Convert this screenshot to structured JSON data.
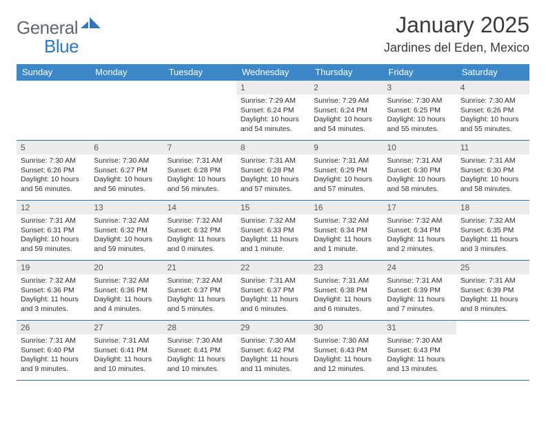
{
  "logo": {
    "text_general": "General",
    "text_blue": "Blue",
    "icon_color": "#2f78bd",
    "general_color": "#5c6770"
  },
  "header": {
    "month_title": "January 2025",
    "location": "Jardines del Eden, Mexico"
  },
  "colors": {
    "header_bar": "#3b87c8",
    "row_divider": "#2f6fa6",
    "daynum_bg": "#ececec",
    "text": "#333333"
  },
  "weekdays": [
    "Sunday",
    "Monday",
    "Tuesday",
    "Wednesday",
    "Thursday",
    "Friday",
    "Saturday"
  ],
  "weeks": [
    [
      {
        "n": "",
        "sunrise": "",
        "sunset": "",
        "daylight": ""
      },
      {
        "n": "",
        "sunrise": "",
        "sunset": "",
        "daylight": ""
      },
      {
        "n": "",
        "sunrise": "",
        "sunset": "",
        "daylight": ""
      },
      {
        "n": "1",
        "sunrise": "Sunrise: 7:29 AM",
        "sunset": "Sunset: 6:24 PM",
        "daylight": "Daylight: 10 hours and 54 minutes."
      },
      {
        "n": "2",
        "sunrise": "Sunrise: 7:29 AM",
        "sunset": "Sunset: 6:24 PM",
        "daylight": "Daylight: 10 hours and 54 minutes."
      },
      {
        "n": "3",
        "sunrise": "Sunrise: 7:30 AM",
        "sunset": "Sunset: 6:25 PM",
        "daylight": "Daylight: 10 hours and 55 minutes."
      },
      {
        "n": "4",
        "sunrise": "Sunrise: 7:30 AM",
        "sunset": "Sunset: 6:26 PM",
        "daylight": "Daylight: 10 hours and 55 minutes."
      }
    ],
    [
      {
        "n": "5",
        "sunrise": "Sunrise: 7:30 AM",
        "sunset": "Sunset: 6:26 PM",
        "daylight": "Daylight: 10 hours and 56 minutes."
      },
      {
        "n": "6",
        "sunrise": "Sunrise: 7:30 AM",
        "sunset": "Sunset: 6:27 PM",
        "daylight": "Daylight: 10 hours and 56 minutes."
      },
      {
        "n": "7",
        "sunrise": "Sunrise: 7:31 AM",
        "sunset": "Sunset: 6:28 PM",
        "daylight": "Daylight: 10 hours and 56 minutes."
      },
      {
        "n": "8",
        "sunrise": "Sunrise: 7:31 AM",
        "sunset": "Sunset: 6:28 PM",
        "daylight": "Daylight: 10 hours and 57 minutes."
      },
      {
        "n": "9",
        "sunrise": "Sunrise: 7:31 AM",
        "sunset": "Sunset: 6:29 PM",
        "daylight": "Daylight: 10 hours and 57 minutes."
      },
      {
        "n": "10",
        "sunrise": "Sunrise: 7:31 AM",
        "sunset": "Sunset: 6:30 PM",
        "daylight": "Daylight: 10 hours and 58 minutes."
      },
      {
        "n": "11",
        "sunrise": "Sunrise: 7:31 AM",
        "sunset": "Sunset: 6:30 PM",
        "daylight": "Daylight: 10 hours and 58 minutes."
      }
    ],
    [
      {
        "n": "12",
        "sunrise": "Sunrise: 7:31 AM",
        "sunset": "Sunset: 6:31 PM",
        "daylight": "Daylight: 10 hours and 59 minutes."
      },
      {
        "n": "13",
        "sunrise": "Sunrise: 7:32 AM",
        "sunset": "Sunset: 6:32 PM",
        "daylight": "Daylight: 10 hours and 59 minutes."
      },
      {
        "n": "14",
        "sunrise": "Sunrise: 7:32 AM",
        "sunset": "Sunset: 6:32 PM",
        "daylight": "Daylight: 11 hours and 0 minutes."
      },
      {
        "n": "15",
        "sunrise": "Sunrise: 7:32 AM",
        "sunset": "Sunset: 6:33 PM",
        "daylight": "Daylight: 11 hours and 1 minute."
      },
      {
        "n": "16",
        "sunrise": "Sunrise: 7:32 AM",
        "sunset": "Sunset: 6:34 PM",
        "daylight": "Daylight: 11 hours and 1 minute."
      },
      {
        "n": "17",
        "sunrise": "Sunrise: 7:32 AM",
        "sunset": "Sunset: 6:34 PM",
        "daylight": "Daylight: 11 hours and 2 minutes."
      },
      {
        "n": "18",
        "sunrise": "Sunrise: 7:32 AM",
        "sunset": "Sunset: 6:35 PM",
        "daylight": "Daylight: 11 hours and 3 minutes."
      }
    ],
    [
      {
        "n": "19",
        "sunrise": "Sunrise: 7:32 AM",
        "sunset": "Sunset: 6:36 PM",
        "daylight": "Daylight: 11 hours and 3 minutes."
      },
      {
        "n": "20",
        "sunrise": "Sunrise: 7:32 AM",
        "sunset": "Sunset: 6:36 PM",
        "daylight": "Daylight: 11 hours and 4 minutes."
      },
      {
        "n": "21",
        "sunrise": "Sunrise: 7:32 AM",
        "sunset": "Sunset: 6:37 PM",
        "daylight": "Daylight: 11 hours and 5 minutes."
      },
      {
        "n": "22",
        "sunrise": "Sunrise: 7:31 AM",
        "sunset": "Sunset: 6:37 PM",
        "daylight": "Daylight: 11 hours and 6 minutes."
      },
      {
        "n": "23",
        "sunrise": "Sunrise: 7:31 AM",
        "sunset": "Sunset: 6:38 PM",
        "daylight": "Daylight: 11 hours and 6 minutes."
      },
      {
        "n": "24",
        "sunrise": "Sunrise: 7:31 AM",
        "sunset": "Sunset: 6:39 PM",
        "daylight": "Daylight: 11 hours and 7 minutes."
      },
      {
        "n": "25",
        "sunrise": "Sunrise: 7:31 AM",
        "sunset": "Sunset: 6:39 PM",
        "daylight": "Daylight: 11 hours and 8 minutes."
      }
    ],
    [
      {
        "n": "26",
        "sunrise": "Sunrise: 7:31 AM",
        "sunset": "Sunset: 6:40 PM",
        "daylight": "Daylight: 11 hours and 9 minutes."
      },
      {
        "n": "27",
        "sunrise": "Sunrise: 7:31 AM",
        "sunset": "Sunset: 6:41 PM",
        "daylight": "Daylight: 11 hours and 10 minutes."
      },
      {
        "n": "28",
        "sunrise": "Sunrise: 7:30 AM",
        "sunset": "Sunset: 6:41 PM",
        "daylight": "Daylight: 11 hours and 10 minutes."
      },
      {
        "n": "29",
        "sunrise": "Sunrise: 7:30 AM",
        "sunset": "Sunset: 6:42 PM",
        "daylight": "Daylight: 11 hours and 11 minutes."
      },
      {
        "n": "30",
        "sunrise": "Sunrise: 7:30 AM",
        "sunset": "Sunset: 6:43 PM",
        "daylight": "Daylight: 11 hours and 12 minutes."
      },
      {
        "n": "31",
        "sunrise": "Sunrise: 7:30 AM",
        "sunset": "Sunset: 6:43 PM",
        "daylight": "Daylight: 11 hours and 13 minutes."
      },
      {
        "n": "",
        "sunrise": "",
        "sunset": "",
        "daylight": ""
      }
    ]
  ]
}
